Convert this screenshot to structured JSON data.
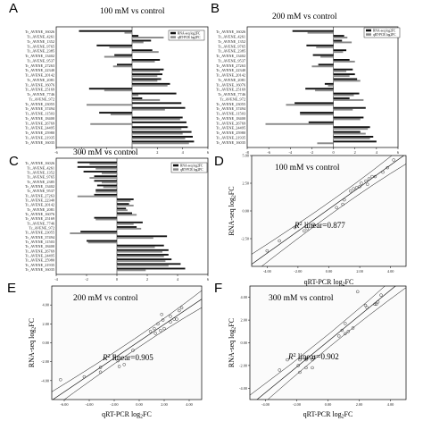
{
  "genes": [
    "Tr_AVENE_16026",
    "Tr_AVENE_4261",
    "Tr_AVENE_1352",
    "Tr_AVENE_9765",
    "Tr_AVENE_2385",
    "Tr_AVENE_13402",
    "Tr_AVENE_9537",
    "Tr_AVENE_27263",
    "Tr_AVENE_22340",
    "Tr_AVENE_20142",
    "Tr_AVENE_2081",
    "Tr_AVENE_16076",
    "Tr_AVENE_25169",
    "Tr_AVENE_7746",
    "Tr_AVENE_972",
    "Tr_AVENE_23055",
    "Tr_AVENE_37494",
    "Tr_AVENE_11503",
    "Tr_AVENE_18400",
    "Tr_AVENE_26769",
    "Tr_AVENE_24495",
    "Tr_AVENE_25980",
    "Tr_AVENE_21935",
    "Tr_AVENE_16035"
  ],
  "legend": {
    "rnaseq": "RNA-seq log2FC",
    "qpcr": "qRT-PCR log2FC"
  },
  "chart_data": [
    {
      "panel": "A",
      "type": "bar",
      "orientation": "horizontal",
      "title": "100 mM vs control",
      "xlim": [
        -6,
        6
      ],
      "xticks": [
        -6,
        -4,
        -2,
        0,
        2,
        4,
        6
      ],
      "series": [
        {
          "name": "RNA-seq log2FC",
          "values": [
            -4.2,
            0.5,
            1.5,
            -2.8,
            1.6,
            -1.4,
            2.2,
            -1.2,
            2.5,
            2.4,
            2.3,
            3.0,
            -3.4,
            3.5,
            0.8,
            3.9,
            4.2,
            -2.6,
            4.0,
            4.3,
            4.4,
            4.7,
            4.8,
            4.9
          ]
        },
        {
          "name": "qRT-PCR log2FC",
          "values": [
            -0.6,
            2.5,
            0.9,
            -1.8,
            2.1,
            -2.2,
            1.8,
            -1.5,
            2.2,
            2.0,
            2.0,
            2.8,
            -2.2,
            0.5,
            2.2,
            -3.6,
            2.6,
            -1.7,
            3.8,
            -3.3,
            3.9,
            4.0,
            4.2,
            4.5
          ]
        }
      ]
    },
    {
      "panel": "B",
      "type": "bar",
      "orientation": "horizontal",
      "title": "200 mM vs control",
      "xlim": [
        -8,
        6
      ],
      "xticks": [
        -8,
        -6,
        -4,
        -2,
        0,
        2,
        4,
        6
      ],
      "series": [
        {
          "name": "RNA-seq log2FC",
          "values": [
            -3.8,
            1.0,
            0.8,
            -2.5,
            1.2,
            -1.9,
            1.5,
            -1.4,
            1.8,
            2.0,
            2.2,
            -0.8,
            -2.6,
            2.4,
            1.5,
            -3.6,
            3.0,
            -3.1,
            2.8,
            -2.3,
            3.4,
            2.5,
            3.7,
            4.0
          ]
        },
        {
          "name": "qRT-PCR log2FC",
          "values": [
            -2.4,
            1.3,
            1.7,
            -1.6,
            0.9,
            -1.2,
            2.0,
            -2.0,
            1.2,
            1.5,
            2.5,
            -0.5,
            -1.7,
            1.9,
            2.8,
            -4.4,
            1.8,
            -3.1,
            2.5,
            -6.3,
            3.2,
            3.0,
            3.4,
            -1.5
          ]
        }
      ]
    },
    {
      "panel": "C",
      "type": "bar",
      "orientation": "horizontal",
      "title": "300 mM vs control",
      "xlim": [
        -4,
        6
      ],
      "xticks": [
        -4,
        -2,
        0,
        2,
        4,
        6
      ],
      "series": [
        {
          "name": "RNA-seq log2FC",
          "values": [
            -2.6,
            -2.6,
            -2.2,
            -1.5,
            -1.5,
            -1.3,
            -1.4,
            -1.5,
            1.1,
            0.8,
            0.6,
            1.0,
            -1.5,
            1.7,
            1.3,
            -2.4,
            3.3,
            -2.0,
            3.1,
            3.4,
            3.4,
            3.6,
            4.2,
            4.5
          ]
        },
        {
          "name": "qRT-PCR log2FC",
          "values": [
            -1.8,
            -1.4,
            -1.0,
            -1.8,
            -1.0,
            -0.9,
            -1.4,
            -2.6,
            0.9,
            1.1,
            0.7,
            1.3,
            -1.4,
            1.1,
            1.6,
            -3.1,
            2.4,
            -1.9,
            2.5,
            3.0,
            3.1,
            3.2,
            3.4,
            1.9
          ]
        }
      ]
    },
    {
      "panel": "D",
      "type": "scatter",
      "title": "100 mM vs control",
      "xlabel": "qRT-PCR log2FC",
      "ylabel": "RNA-seq log2FC",
      "r2_text": "R2 linear=0.877",
      "xlim": [
        -5,
        5
      ],
      "ylim": [
        -5,
        5
      ],
      "xticks": [
        "-4.00",
        "-2.00",
        "0.00",
        "2.00",
        "4.00"
      ],
      "yticks": [
        "5.00",
        "2.50",
        "0.00",
        "-2.50"
      ],
      "points": [
        [
          -4.0,
          -3.6
        ],
        [
          -3.2,
          -2.7
        ],
        [
          -2.2,
          -1.5
        ],
        [
          -1.6,
          -1.8
        ],
        [
          -1.4,
          -1.6
        ],
        [
          -1.0,
          -1.2
        ],
        [
          0.5,
          0.3
        ],
        [
          0.9,
          0.6
        ],
        [
          1.0,
          1.0
        ],
        [
          1.4,
          1.8
        ],
        [
          1.6,
          2.0
        ],
        [
          1.8,
          2.1
        ],
        [
          2.0,
          2.2
        ],
        [
          2.1,
          2.5
        ],
        [
          2.4,
          2.7
        ],
        [
          2.5,
          2.4
        ],
        [
          2.6,
          2.9
        ],
        [
          2.8,
          3.1
        ],
        [
          3.0,
          3.1
        ],
        [
          3.5,
          3.5
        ],
        [
          3.8,
          3.9
        ],
        [
          4.2,
          4.6
        ]
      ]
    },
    {
      "panel": "E",
      "type": "scatter",
      "title": "200 mM vs control",
      "xlabel": "qRT-PCR log2FC",
      "ylabel": "RNA-seq log2FC",
      "r2_text": "R2 linear=0.905",
      "xlim": [
        -7,
        5
      ],
      "ylim": [
        -6,
        6
      ],
      "xticks": [
        "-6.00",
        "-4.00",
        "-2.00",
        "0.00",
        "2.00",
        "4.00"
      ],
      "yticks": [
        "4.00",
        "2.00",
        "0.00",
        "-2.00",
        "-4.00"
      ],
      "points": [
        [
          -6.3,
          -3.9
        ],
        [
          -4.4,
          -3.6
        ],
        [
          -3.1,
          -3.1
        ],
        [
          -3.1,
          -2.6
        ],
        [
          -2.0,
          -1.4
        ],
        [
          -1.6,
          -2.5
        ],
        [
          -1.7,
          -1.9
        ],
        [
          -1.2,
          -2.3
        ],
        [
          -0.5,
          -0.8
        ],
        [
          0.9,
          1.2
        ],
        [
          1.2,
          1.5
        ],
        [
          1.5,
          2.0
        ],
        [
          1.7,
          1.3
        ],
        [
          1.8,
          3.0
        ],
        [
          1.9,
          2.4
        ],
        [
          2.0,
          1.5
        ],
        [
          2.5,
          2.2
        ],
        [
          2.5,
          2.8
        ],
        [
          2.8,
          2.5
        ],
        [
          3.0,
          2.5
        ],
        [
          3.2,
          3.4
        ],
        [
          3.4,
          3.7
        ],
        [
          1.3,
          1.0
        ]
      ]
    },
    {
      "panel": "F",
      "type": "scatter",
      "title": "300 mM vs control",
      "xlabel": "qRT-PCR log2FC",
      "ylabel": "RNA-seq log2FC",
      "r2_text": "R2 linear=0.902",
      "xlim": [
        -5,
        5
      ],
      "ylim": [
        -5,
        5
      ],
      "xticks": [
        "-4.00",
        "-2.00",
        "0.00",
        "2.00",
        "4.00"
      ],
      "yticks": [
        "4.00",
        "2.00",
        "0.00",
        "-2.00",
        "-4.00"
      ],
      "points": [
        [
          -3.1,
          -2.4
        ],
        [
          -2.6,
          -1.5
        ],
        [
          -1.9,
          -2.0
        ],
        [
          -1.8,
          -2.6
        ],
        [
          -1.8,
          -1.5
        ],
        [
          -1.4,
          -2.2
        ],
        [
          -1.4,
          -1.4
        ],
        [
          -1.4,
          -1.5
        ],
        [
          -1.0,
          -1.5
        ],
        [
          -1.0,
          -2.2
        ],
        [
          -0.9,
          -1.3
        ],
        [
          0.7,
          0.6
        ],
        [
          0.9,
          1.1
        ],
        [
          1.1,
          0.8
        ],
        [
          1.1,
          1.7
        ],
        [
          1.3,
          1.0
        ],
        [
          1.6,
          1.3
        ],
        [
          1.9,
          4.5
        ],
        [
          2.4,
          3.3
        ],
        [
          2.5,
          3.1
        ],
        [
          3.0,
          3.4
        ],
        [
          3.1,
          3.4
        ],
        [
          3.2,
          3.6
        ],
        [
          3.4,
          4.2
        ]
      ]
    }
  ]
}
